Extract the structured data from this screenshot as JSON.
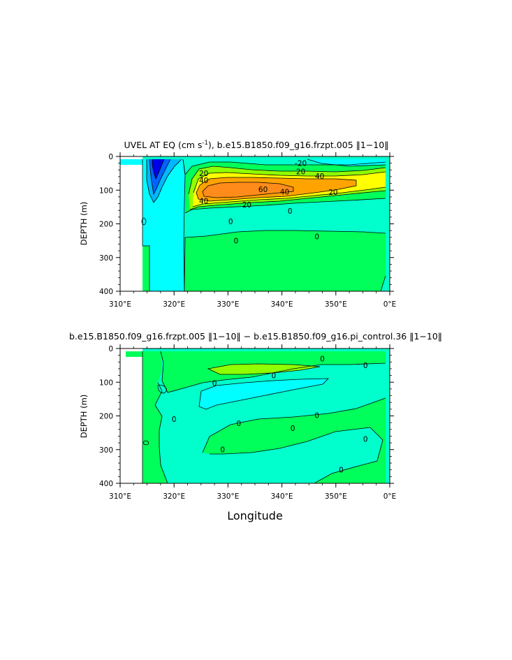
{
  "chart_data": [
    {
      "type": "contour",
      "title": "UVEL AT EQ (cm s",
      "title_superscript": "-1",
      "title_rest": "), b.e15.B1850.f09_g16.frzpt.005 ‖1−10‖",
      "ylabel": "DEPTH (m)",
      "xlabel": "",
      "xlim": [
        310,
        360
      ],
      "ylim": [
        400,
        0
      ],
      "xticks": [
        "310°E",
        "320°E",
        "330°E",
        "340°E",
        "350°E",
        "0°E"
      ],
      "yticks": [
        "0",
        "100",
        "200",
        "300",
        "400"
      ],
      "contour_labels": [
        {
          "text": "-20",
          "x": 343.5,
          "y": 20
        },
        {
          "text": "20",
          "x": 343.5,
          "y": 45
        },
        {
          "text": "20",
          "x": 325.5,
          "y": 50
        },
        {
          "text": "40",
          "x": 347,
          "y": 58
        },
        {
          "text": "40",
          "x": 325.5,
          "y": 70
        },
        {
          "text": "60",
          "x": 336.5,
          "y": 97
        },
        {
          "text": "40",
          "x": 340.5,
          "y": 105
        },
        {
          "text": "20",
          "x": 349.5,
          "y": 106
        },
        {
          "text": "40",
          "x": 325.5,
          "y": 132
        },
        {
          "text": "20",
          "x": 333.5,
          "y": 143
        },
        {
          "text": "0",
          "x": 341.5,
          "y": 162
        },
        {
          "text": "0",
          "x": 330.5,
          "y": 193
        },
        {
          "text": "0",
          "x": 331.5,
          "y": 250
        },
        {
          "text": "0",
          "x": 346.5,
          "y": 237
        }
      ]
    },
    {
      "type": "contour",
      "title": "b.e15.B1850.f09_g16.frzpt.005 ‖1−10‖ − b.e15.B1850.f09_g16.pi_control.36 ‖1−10‖",
      "ylabel": "DEPTH (m)",
      "xlabel": "Longitude",
      "xlim": [
        310,
        360
      ],
      "ylim": [
        400,
        0
      ],
      "xticks": [
        "310°E",
        "320°E",
        "330°E",
        "340°E",
        "350°E",
        "0°E"
      ],
      "yticks": [
        "0",
        "100",
        "200",
        "300",
        "400"
      ],
      "contour_labels": [
        {
          "text": "0",
          "x": 347.5,
          "y": 30
        },
        {
          "text": "0",
          "x": 355.5,
          "y": 50
        },
        {
          "text": "0",
          "x": 338.5,
          "y": 80
        },
        {
          "text": "0",
          "x": 327.5,
          "y": 103
        },
        {
          "text": "0",
          "x": 346.5,
          "y": 198
        },
        {
          "text": "0",
          "x": 320,
          "y": 209
        },
        {
          "text": "0",
          "x": 332,
          "y": 222
        },
        {
          "text": "0",
          "x": 342,
          "y": 236
        },
        {
          "text": "0",
          "x": 355.5,
          "y": 268
        },
        {
          "text": "0",
          "x": 329,
          "y": 299
        },
        {
          "text": "0",
          "x": 351,
          "y": 360
        }
      ]
    }
  ],
  "colors": {
    "green": "#00ff5a",
    "aqua": "#00ffcc",
    "cyan": "#00ffff",
    "sky": "#00b8ff",
    "blue": "#0064ff",
    "navy": "#0000e6",
    "lightgreen": "#90ff00",
    "yellow": "#ffff00",
    "orange": "#ffa300",
    "peach": "#ff8c1a",
    "deeporange": "#ff7d00"
  }
}
